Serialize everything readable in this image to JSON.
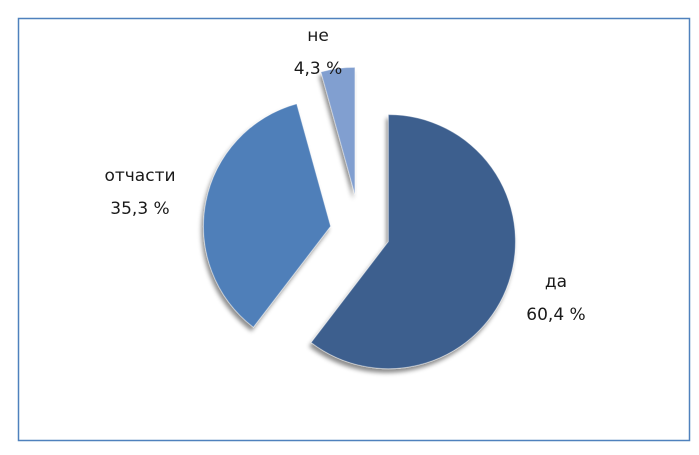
{
  "chart_data": {
    "type": "pie",
    "categories": [
      "да",
      "отчасти",
      "не"
    ],
    "values": [
      60.4,
      35.3,
      4.3
    ],
    "value_labels": [
      "60,4 %",
      "35,3 %",
      "4,3 %"
    ],
    "colors": [
      "#3d5f8e",
      "#4f7fb9",
      "#819fd0"
    ]
  }
}
